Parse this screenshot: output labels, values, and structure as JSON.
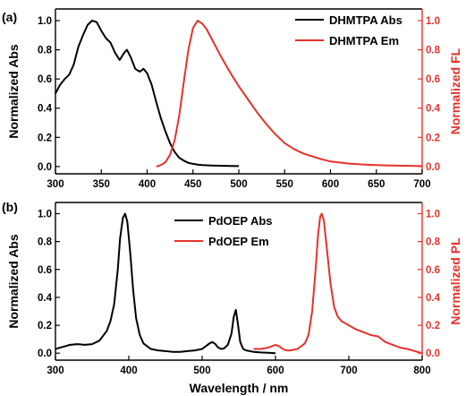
{
  "colors": {
    "abs": "#000000",
    "em": "#e8312b"
  },
  "x_axis_label": "Wavelength / nm",
  "chart_data": [
    {
      "type": "line",
      "panel_label": "(a)",
      "ylabel_left": "Normalized Abs",
      "ylabel_right": "Normalized FL",
      "xlim": [
        300,
        700
      ],
      "xticks": [
        300,
        350,
        400,
        450,
        500,
        550,
        600,
        650,
        700
      ],
      "ylim": [
        -0.05,
        1.08
      ],
      "yticks": [
        0.0,
        0.2,
        0.4,
        0.6,
        0.8,
        1.0
      ],
      "legend_position": "top-right",
      "series": [
        {
          "name": "DHMTPA Abs",
          "color": "#000000",
          "x": [
            300,
            305,
            310,
            315,
            320,
            325,
            330,
            335,
            340,
            345,
            350,
            355,
            360,
            365,
            370,
            375,
            378,
            382,
            387,
            392,
            396,
            400,
            405,
            410,
            415,
            420,
            425,
            430,
            435,
            440,
            445,
            450,
            455,
            460,
            470,
            480,
            490,
            500
          ],
          "y": [
            0.5,
            0.56,
            0.6,
            0.63,
            0.7,
            0.82,
            0.9,
            0.97,
            1.0,
            0.99,
            0.93,
            0.88,
            0.85,
            0.78,
            0.73,
            0.78,
            0.8,
            0.75,
            0.67,
            0.65,
            0.67,
            0.64,
            0.56,
            0.44,
            0.33,
            0.24,
            0.16,
            0.1,
            0.06,
            0.04,
            0.025,
            0.018,
            0.013,
            0.01,
            0.007,
            0.005,
            0.004,
            0.003
          ]
        },
        {
          "name": "DHMTPA Em",
          "color": "#e8312b",
          "x": [
            410,
            415,
            420,
            425,
            430,
            435,
            440,
            445,
            450,
            455,
            460,
            465,
            470,
            475,
            480,
            490,
            500,
            510,
            520,
            530,
            540,
            550,
            560,
            570,
            580,
            590,
            600,
            620,
            640,
            660,
            680,
            700
          ],
          "y": [
            0.0,
            0.01,
            0.03,
            0.08,
            0.18,
            0.35,
            0.58,
            0.8,
            0.95,
            1.0,
            0.98,
            0.94,
            0.88,
            0.82,
            0.76,
            0.65,
            0.55,
            0.46,
            0.37,
            0.29,
            0.22,
            0.16,
            0.12,
            0.09,
            0.07,
            0.05,
            0.035,
            0.02,
            0.012,
            0.008,
            0.005,
            0.003
          ]
        }
      ]
    },
    {
      "type": "line",
      "panel_label": "(b)",
      "ylabel_left": "Normalized Abs",
      "ylabel_right": "Normalized PL",
      "xlabel": "Wavelength / nm",
      "xlim": [
        300,
        800
      ],
      "xticks": [
        300,
        400,
        500,
        600,
        700,
        800
      ],
      "ylim": [
        -0.05,
        1.08
      ],
      "yticks": [
        0.0,
        0.2,
        0.4,
        0.6,
        0.8,
        1.0
      ],
      "legend_position": "top-center",
      "series": [
        {
          "name": "PdOEP Abs",
          "color": "#000000",
          "x": [
            300,
            310,
            320,
            330,
            340,
            350,
            360,
            370,
            375,
            380,
            385,
            388,
            392,
            395,
            398,
            402,
            406,
            410,
            415,
            420,
            430,
            440,
            450,
            460,
            470,
            480,
            490,
            500,
            505,
            510,
            514,
            518,
            522,
            526,
            530,
            535,
            540,
            543,
            546,
            549,
            552,
            556,
            560,
            570,
            580,
            590,
            600
          ],
          "y": [
            0.03,
            0.045,
            0.06,
            0.065,
            0.06,
            0.065,
            0.09,
            0.16,
            0.23,
            0.35,
            0.6,
            0.82,
            0.97,
            1.0,
            0.94,
            0.72,
            0.45,
            0.25,
            0.13,
            0.07,
            0.03,
            0.02,
            0.015,
            0.01,
            0.01,
            0.015,
            0.02,
            0.03,
            0.05,
            0.07,
            0.08,
            0.065,
            0.04,
            0.03,
            0.035,
            0.06,
            0.14,
            0.26,
            0.31,
            0.2,
            0.08,
            0.03,
            0.02,
            0.01,
            0.005,
            0.003,
            0.0
          ]
        },
        {
          "name": "PdOEP Em",
          "color": "#e8312b",
          "x": [
            570,
            580,
            590,
            595,
            600,
            605,
            610,
            615,
            620,
            630,
            640,
            645,
            650,
            655,
            658,
            661,
            663,
            666,
            670,
            675,
            680,
            685,
            690,
            700,
            710,
            720,
            730,
            740,
            750,
            760,
            770,
            780,
            790,
            800
          ],
          "y": [
            0.03,
            0.03,
            0.04,
            0.05,
            0.06,
            0.05,
            0.03,
            0.02,
            0.02,
            0.03,
            0.07,
            0.13,
            0.3,
            0.62,
            0.85,
            0.98,
            1.0,
            0.95,
            0.75,
            0.5,
            0.33,
            0.26,
            0.23,
            0.2,
            0.17,
            0.15,
            0.13,
            0.12,
            0.08,
            0.06,
            0.04,
            0.03,
            0.015,
            0.0
          ]
        }
      ]
    }
  ]
}
